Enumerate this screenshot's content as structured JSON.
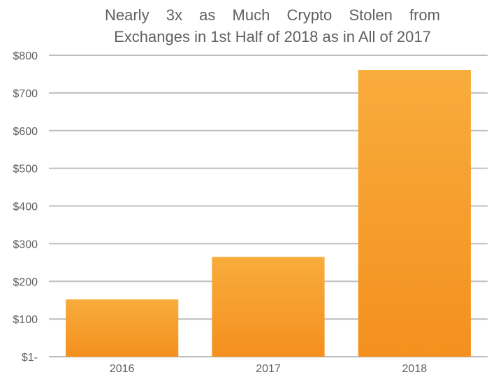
{
  "chart_data": {
    "type": "bar",
    "title_line1": "Nearly 3x as Much Crypto Stolen from",
    "title_line2": "Exchanges in 1st Half of 2018 as in All of 2017",
    "categories": [
      "2016",
      "2017",
      "2018"
    ],
    "values": [
      152,
      265,
      761
    ],
    "ylim": [
      0,
      800
    ],
    "yticks": [
      0,
      100,
      200,
      300,
      400,
      500,
      600,
      700,
      800
    ],
    "ytick_labels": [
      "$1-",
      "$100",
      "$200",
      "$300",
      "$400",
      "$500",
      "$600",
      "$700",
      "$800"
    ],
    "grid": true,
    "legend": "none",
    "xlabel": "",
    "ylabel": ""
  },
  "colors": {
    "bar_top": "#f8ac3c",
    "bar_bottom": "#f4901e",
    "grid": "#bfbfbf",
    "text": "#5f5f5f"
  }
}
